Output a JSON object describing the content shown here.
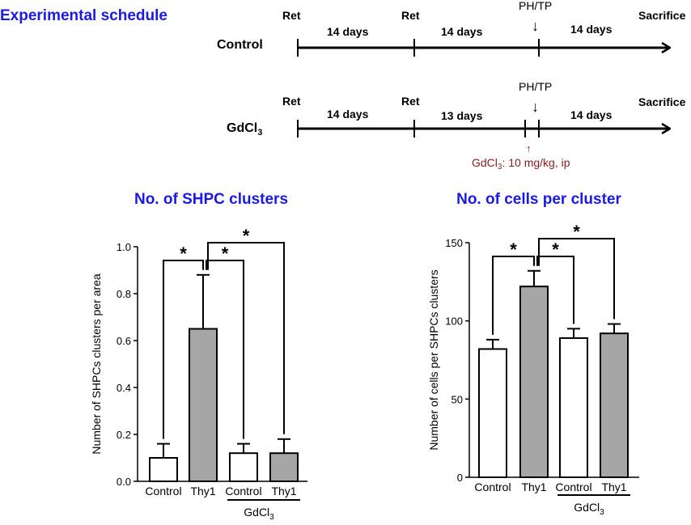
{
  "schedule": {
    "title": "Experimental schedule",
    "ret_label": "Ret",
    "sacrifice_label": "Sacrifice",
    "ph_tp_label": "PH/TP",
    "control": {
      "label": "Control",
      "intervals": [
        "14 days",
        "14 days",
        "14 days"
      ]
    },
    "gdcl3": {
      "label_main": "GdCl",
      "label_sub": "3",
      "intervals": [
        "14 days",
        "13 days",
        "14 days"
      ],
      "injection_label_main": "GdCl",
      "injection_label_sub": "3",
      "injection_label_rest": ": 10 mg/kg, ip"
    }
  },
  "colors": {
    "title_blue": "#1a1ae6",
    "injection_red": "#8b1a1a",
    "bar_white": "#ffffff",
    "bar_gray": "#a6a6a6"
  },
  "chart_data": [
    {
      "type": "bar",
      "title": "No. of SHPC clusters",
      "ylabel": "Number of SHPCs clusters per area",
      "xlabel": "",
      "ylim": [
        0,
        1.0
      ],
      "yticks": [
        "0.0",
        "0.2",
        "0.4",
        "0.6",
        "0.8",
        "1.0"
      ],
      "ytick_values": [
        0,
        0.2,
        0.4,
        0.6,
        0.8,
        1.0
      ],
      "categories": [
        "Control",
        "Thy1",
        "Control",
        "Thy1"
      ],
      "values": [
        0.1,
        0.65,
        0.12,
        0.12
      ],
      "errors": [
        0.06,
        0.23,
        0.04,
        0.06
      ],
      "fills": [
        "white",
        "gray",
        "white",
        "gray"
      ],
      "group_label_main": "GdCl",
      "group_label_sub": "3",
      "significance": [
        {
          "from": 0,
          "to": 1,
          "label": "*"
        },
        {
          "from": 1,
          "to": 2,
          "label": "*"
        },
        {
          "from": 1,
          "to": 3,
          "label": "*"
        }
      ]
    },
    {
      "type": "bar",
      "title": "No. of cells per cluster",
      "ylabel": "Number of cells per SHPCs clusters",
      "xlabel": "",
      "ylim": [
        0,
        150
      ],
      "yticks": [
        "0",
        "50",
        "100",
        "150"
      ],
      "ytick_values": [
        0,
        50,
        100,
        150
      ],
      "categories": [
        "Control",
        "Thy1",
        "Control",
        "Thy1"
      ],
      "values": [
        82,
        122,
        89,
        92
      ],
      "errors": [
        6,
        10,
        6,
        6
      ],
      "fills": [
        "white",
        "gray",
        "white",
        "gray"
      ],
      "group_label_main": "GdCl",
      "group_label_sub": "3",
      "significance": [
        {
          "from": 0,
          "to": 1,
          "label": "*"
        },
        {
          "from": 1,
          "to": 2,
          "label": "*"
        },
        {
          "from": 1,
          "to": 3,
          "label": "*"
        }
      ]
    }
  ]
}
